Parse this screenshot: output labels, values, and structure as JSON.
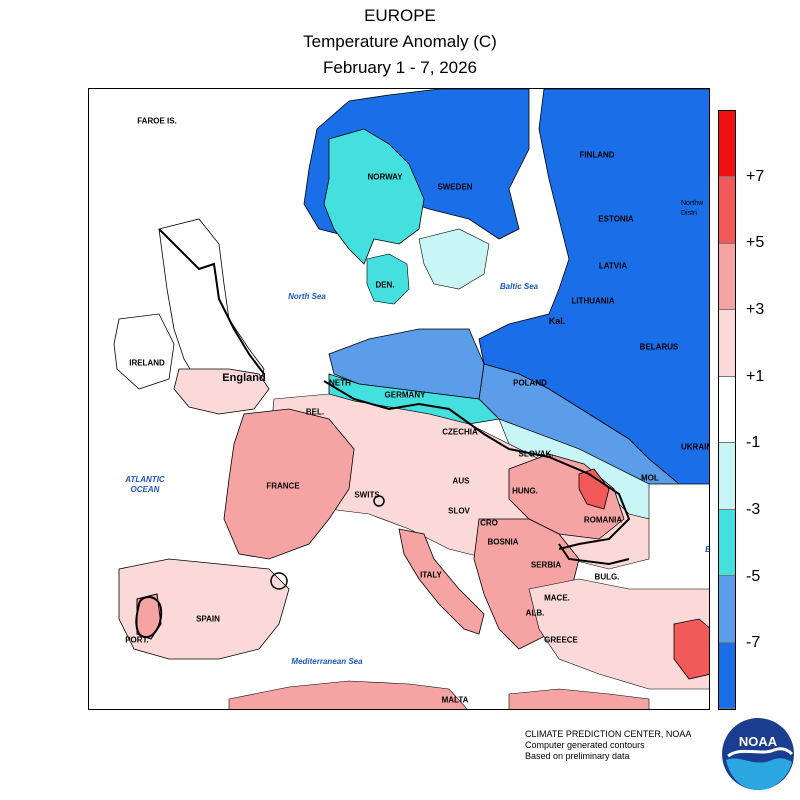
{
  "header": {
    "title": "EUROPE",
    "subtitle": "Temperature Anomaly (C)",
    "period": "February 1 - 7, 2026"
  },
  "legend": {
    "ticks": [
      "+7",
      "+5",
      "+3",
      "+1",
      "-1",
      "-3",
      "-5",
      "-7"
    ],
    "bins": [
      {
        "color": "#ee1111"
      },
      {
        "color": "#f25a5a"
      },
      {
        "color": "#f5a3a3"
      },
      {
        "color": "#fbd9d9"
      },
      {
        "color": "#ffffff"
      },
      {
        "color": "#c8f6f6"
      },
      {
        "color": "#44e0e0"
      },
      {
        "color": "#5b9de8"
      },
      {
        "color": "#1a6ee8"
      }
    ]
  },
  "map_labels": {
    "faroe": "FAROE IS.",
    "norway": "NORWAY",
    "sweden": "SWEDEN",
    "finland": "FINLAND",
    "estonia": "ESTONIA",
    "northwest_district": "Northw Distri",
    "latvia": "LATVIA",
    "lithuania": "LITHUANIA",
    "kaliningrad": "Kal.",
    "belarus": "BELARUS",
    "denmark": "DEN.",
    "north_sea": "North Sea",
    "baltic_sea": "Baltic Sea",
    "ireland": "IRELAND",
    "england": "England",
    "netherlands": "NETH",
    "germany": "GERMANY",
    "poland": "POLAND",
    "belgium": "BEL.",
    "czechia": "CZECHIA",
    "slovakia": "SLOVAK.",
    "ukraine": "UKRAINE",
    "atlantic_ocean": "ATLANTIC OCEAN",
    "france": "FRANCE",
    "switzerland": "SWITS",
    "austria": "AUS",
    "hungary": "HUNG.",
    "moldova": "MOL",
    "slovenia": "SLOV",
    "croatia": "CRO",
    "romania": "ROMANIA",
    "bosnia": "BOSNIA",
    "serbia": "SERBIA",
    "bulgaria": "BULG.",
    "italy": "ITALY",
    "spain": "SPAIN",
    "portugal": "PORT.",
    "macedonia": "MACE.",
    "albania": "ALB.",
    "greece": "GREECE",
    "mediterranean": "Mediterranean Sea",
    "malta": "MALTA",
    "black_sea_partial": "B"
  },
  "credits": {
    "line1": "CLIMATE PREDICTION CENTER, NOAA",
    "line2": "Computer generated contours",
    "line3": "Based on preliminary data"
  },
  "logo": {
    "text": "NOAA"
  }
}
